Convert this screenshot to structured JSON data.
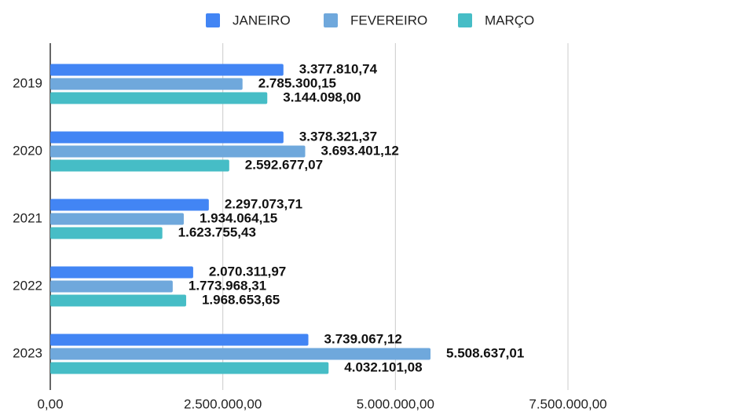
{
  "chart_data": {
    "type": "bar",
    "orientation": "horizontal",
    "categories": [
      "2019",
      "2020",
      "2021",
      "2022",
      "2023"
    ],
    "series": [
      {
        "name": "JANEIRO",
        "color": "#4285f4",
        "values": [
          3377810.74,
          3378321.37,
          2297073.71,
          2070311.97,
          3739067.12
        ],
        "value_labels": [
          "3.377.810,74",
          "3.378.321,37",
          "2.297.073,71",
          "2.070.311,97",
          "3.739.067,12"
        ]
      },
      {
        "name": "FEVEREIRO",
        "color": "#6fa8dc",
        "values": [
          2785300.15,
          3693401.12,
          1934064.15,
          1773968.31,
          5508637.01
        ],
        "value_labels": [
          "2.785.300,15",
          "3.693.401,12",
          "1.934.064,15",
          "1.773.968,31",
          "5.508.637,01"
        ]
      },
      {
        "name": "MARÇO",
        "color": "#46bdc6",
        "values": [
          3144098.0,
          2592677.07,
          1623755.43,
          1968653.65,
          4032101.08
        ],
        "value_labels": [
          "3.144.098,00",
          "2.592.677,07",
          "1.623.755,43",
          "1.968.653,65",
          "4.032.101,08"
        ]
      }
    ],
    "xlim": [
      0,
      7500000
    ],
    "xticks": [
      {
        "value": 0,
        "label": "0,00"
      },
      {
        "value": 2500000,
        "label": "2.500.000,00"
      },
      {
        "value": 5000000,
        "label": "5.000.000,00"
      },
      {
        "value": 7500000,
        "label": "7.500.000,00"
      }
    ],
    "grid": true,
    "legend": "top"
  }
}
